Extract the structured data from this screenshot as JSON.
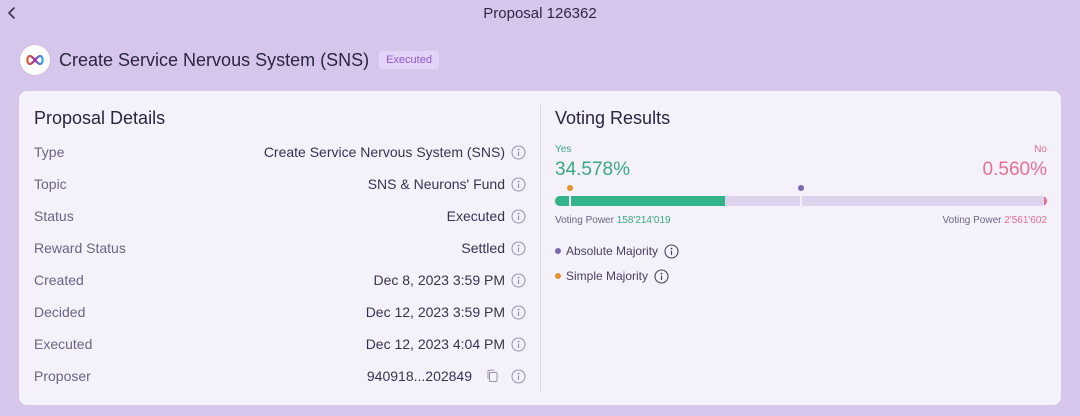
{
  "page": {
    "title": "Proposal 126362"
  },
  "header": {
    "proposal_type": "Create Service Nervous System (SNS)",
    "status_badge": "Executed"
  },
  "details": {
    "title": "Proposal Details",
    "rows": [
      {
        "label": "Type",
        "value": "Create Service Nervous System (SNS)"
      },
      {
        "label": "Topic",
        "value": "SNS & Neurons' Fund"
      },
      {
        "label": "Status",
        "value": "Executed"
      },
      {
        "label": "Reward Status",
        "value": "Settled"
      },
      {
        "label": "Created",
        "value": "Dec 8, 2023 3:59 PM"
      },
      {
        "label": "Decided",
        "value": "Dec 12, 2023 3:59 PM"
      },
      {
        "label": "Executed",
        "value": "Dec 12, 2023 4:04 PM"
      },
      {
        "label": "Proposer",
        "value": "940918...202849"
      }
    ]
  },
  "voting": {
    "title": "Voting Results",
    "yes_label": "Yes",
    "no_label": "No",
    "yes_percent": "34.578%",
    "no_percent": "0.560%",
    "yes_fraction": 0.34578,
    "no_fraction": 0.0056,
    "simple_majority_marker": 0.03,
    "absolute_majority_marker": 0.5,
    "voting_power_label": "Voting Power",
    "yes_power": "158'214'019",
    "no_power": "2'561'602",
    "legend": {
      "absolute": "Absolute Majority",
      "simple": "Simple Majority"
    }
  },
  "colors": {
    "yes": "#33b38a",
    "no": "#ec6a8c",
    "simple_majority": "#e5922f",
    "absolute_majority": "#7a67b4",
    "background": "#d6c6ec"
  }
}
